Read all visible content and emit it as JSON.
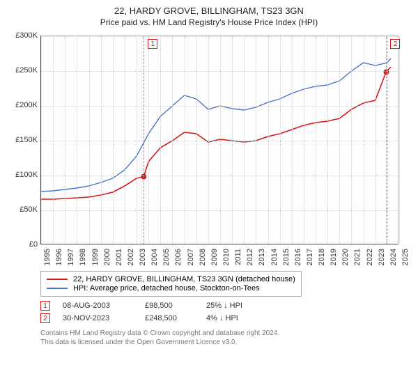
{
  "title_line1": "22, HARDY GROVE, BILLINGHAM, TS23 3GN",
  "title_line2": "Price paid vs. HM Land Registry's House Price Index (HPI)",
  "chart": {
    "type": "line",
    "background_color": "#fefefe",
    "grid_color": "#cccccc",
    "axis_color": "#444444",
    "x_years": [
      1995,
      1996,
      1997,
      1998,
      1999,
      2000,
      2001,
      2002,
      2003,
      2004,
      2005,
      2006,
      2007,
      2008,
      2009,
      2010,
      2011,
      2012,
      2013,
      2014,
      2015,
      2016,
      2017,
      2018,
      2019,
      2020,
      2021,
      2022,
      2023,
      2024,
      2025
    ],
    "x_min": 1995,
    "x_max": 2025,
    "y_min": 0,
    "y_max": 300000,
    "y_ticks": [
      0,
      50000,
      100000,
      150000,
      200000,
      250000,
      300000
    ],
    "y_labels": [
      "£0",
      "£50K",
      "£100K",
      "£150K",
      "£200K",
      "£250K",
      "£300K"
    ],
    "series": [
      {
        "name": "price_paid",
        "label": "22, HARDY GROVE, BILLINGHAM, TS23 3GN (detached house)",
        "color": "#d31919",
        "width": 1.6,
        "points": [
          [
            1995,
            66000
          ],
          [
            1996,
            66000
          ],
          [
            1997,
            67000
          ],
          [
            1998,
            68000
          ],
          [
            1999,
            69000
          ],
          [
            2000,
            72000
          ],
          [
            2001,
            76000
          ],
          [
            2002,
            85000
          ],
          [
            2003,
            96000
          ],
          [
            2003.6,
            98500
          ],
          [
            2004,
            120000
          ],
          [
            2005,
            140000
          ],
          [
            2006,
            150000
          ],
          [
            2007,
            162000
          ],
          [
            2008,
            160000
          ],
          [
            2009,
            148000
          ],
          [
            2010,
            152000
          ],
          [
            2011,
            150000
          ],
          [
            2012,
            148000
          ],
          [
            2013,
            150000
          ],
          [
            2014,
            156000
          ],
          [
            2015,
            160000
          ],
          [
            2016,
            166000
          ],
          [
            2017,
            172000
          ],
          [
            2018,
            176000
          ],
          [
            2019,
            178000
          ],
          [
            2020,
            182000
          ],
          [
            2021,
            195000
          ],
          [
            2022,
            204000
          ],
          [
            2023,
            208000
          ],
          [
            2023.9,
            248500
          ],
          [
            2024.3,
            256000
          ]
        ]
      },
      {
        "name": "hpi",
        "label": "HPI: Average price, detached house, Stockton-on-Tees",
        "color": "#4a74c9",
        "width": 1.4,
        "points": [
          [
            1995,
            77000
          ],
          [
            1996,
            78000
          ],
          [
            1997,
            80000
          ],
          [
            1998,
            82000
          ],
          [
            1999,
            85000
          ],
          [
            2000,
            90000
          ],
          [
            2001,
            96000
          ],
          [
            2002,
            108000
          ],
          [
            2003,
            128000
          ],
          [
            2004,
            160000
          ],
          [
            2005,
            185000
          ],
          [
            2006,
            200000
          ],
          [
            2007,
            215000
          ],
          [
            2008,
            210000
          ],
          [
            2009,
            195000
          ],
          [
            2010,
            200000
          ],
          [
            2011,
            196000
          ],
          [
            2012,
            194000
          ],
          [
            2013,
            198000
          ],
          [
            2014,
            205000
          ],
          [
            2015,
            210000
          ],
          [
            2016,
            218000
          ],
          [
            2017,
            224000
          ],
          [
            2018,
            228000
          ],
          [
            2019,
            230000
          ],
          [
            2020,
            236000
          ],
          [
            2021,
            250000
          ],
          [
            2022,
            262000
          ],
          [
            2023,
            258000
          ],
          [
            2024,
            262000
          ],
          [
            2024.3,
            268000
          ]
        ]
      }
    ],
    "sale_markers": [
      {
        "n": "1",
        "year": 2003.6,
        "price": 98500
      },
      {
        "n": "2",
        "year": 2023.92,
        "price": 248500
      }
    ]
  },
  "legend": {
    "items": [
      {
        "color": "#d31919",
        "label": "22, HARDY GROVE, BILLINGHAM, TS23 3GN (detached house)"
      },
      {
        "color": "#4a74c9",
        "label": "HPI: Average price, detached house, Stockton-on-Tees"
      }
    ]
  },
  "sales": [
    {
      "n": "1",
      "date": "08-AUG-2003",
      "price": "£98,500",
      "hpi_delta": "25% ↓ HPI"
    },
    {
      "n": "2",
      "date": "30-NOV-2023",
      "price": "£248,500",
      "hpi_delta": "4% ↓ HPI"
    }
  ],
  "footer_line1": "Contains HM Land Registry data © Crown copyright and database right 2024.",
  "footer_line2": "This data is licensed under the Open Government Licence v3.0."
}
